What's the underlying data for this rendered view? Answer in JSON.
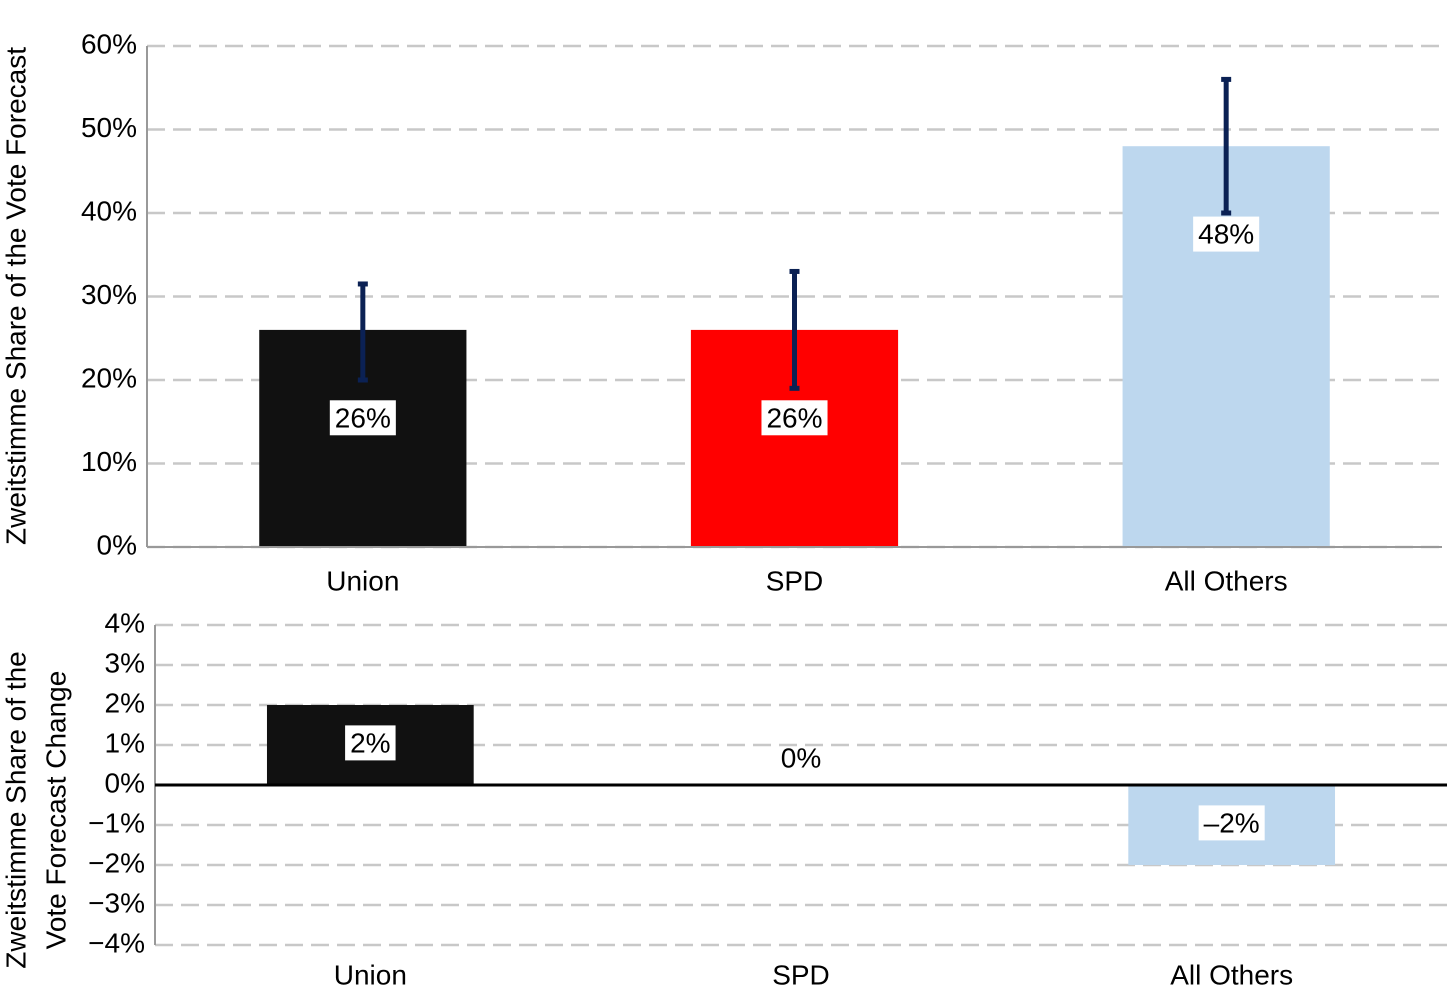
{
  "chart_data": [
    {
      "type": "bar",
      "ylabel": "Zweitstimme Share of the Vote Forecast",
      "categories": [
        "Union",
        "SPD",
        "All Others"
      ],
      "values": [
        26,
        26,
        48
      ],
      "value_labels": [
        "26%",
        "26%",
        "48%"
      ],
      "error_minus": [
        6,
        7,
        8
      ],
      "error_plus": [
        5.5,
        7,
        8
      ],
      "error_color": "#0b2154",
      "colors": [
        "#111111",
        "#ff0000",
        "#bdd7ee"
      ],
      "ylim": [
        0,
        60
      ],
      "yticks": [
        {
          "value": 0,
          "label": "0%"
        },
        {
          "value": 10,
          "label": "10%"
        },
        {
          "value": 20,
          "label": "20%"
        },
        {
          "value": 30,
          "label": "30%"
        },
        {
          "value": 40,
          "label": "40%"
        },
        {
          "value": 50,
          "label": "50%"
        },
        {
          "value": 60,
          "label": "60%"
        }
      ],
      "grid": true
    },
    {
      "type": "bar",
      "ylabel": [
        "Zweitstimme Share of the",
        "Vote Forecast Change"
      ],
      "categories": [
        "Union",
        "SPD",
        "All Others"
      ],
      "values": [
        2,
        0,
        -2
      ],
      "value_labels": [
        "2%",
        "0%",
        "–2%"
      ],
      "colors": [
        "#111111",
        "#ff0000",
        "#bdd7ee"
      ],
      "ylim": [
        -4,
        4
      ],
      "yticks": [
        {
          "value": -4,
          "label": "−4%"
        },
        {
          "value": -3,
          "label": "−3%"
        },
        {
          "value": -2,
          "label": "−2%"
        },
        {
          "value": -1,
          "label": "−1%"
        },
        {
          "value": 0,
          "label": "0%"
        },
        {
          "value": 1,
          "label": "1%"
        },
        {
          "value": 2,
          "label": "2%"
        },
        {
          "value": 3,
          "label": "3%"
        },
        {
          "value": 4,
          "label": "4%"
        }
      ],
      "grid": true
    }
  ]
}
